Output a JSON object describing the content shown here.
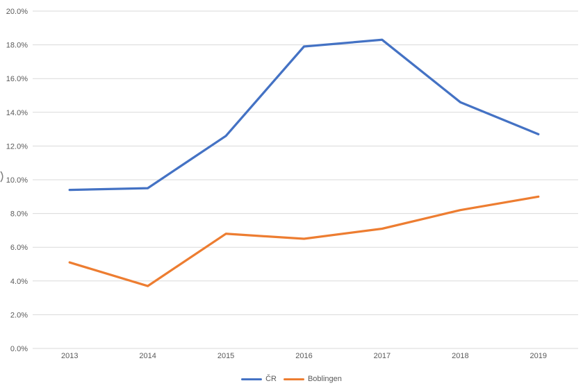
{
  "page": {
    "background": "#ffffff"
  },
  "chart_data": {
    "type": "line",
    "title": "",
    "xlabel": "",
    "ylabel": "",
    "categories": [
      "2013",
      "2014",
      "2015",
      "2016",
      "2017",
      "2018",
      "2019"
    ],
    "series": [
      {
        "name": "ČR",
        "color": "#4472c4",
        "values": [
          9.4,
          9.5,
          12.6,
          17.9,
          18.3,
          14.6,
          12.7
        ]
      },
      {
        "name": "Boblingen",
        "color": "#ed7d31",
        "values": [
          5.1,
          3.7,
          6.8,
          6.5,
          7.1,
          8.2,
          9.0
        ]
      }
    ],
    "ylim": [
      0,
      20
    ],
    "ytick_step": 2,
    "ytick_labels": [
      "0.0%",
      "2.0%",
      "4.0%",
      "6.0%",
      "8.0%",
      "10.0%",
      "12.0%",
      "14.0%",
      "16.0%",
      "18.0%",
      "20.0%"
    ],
    "grid": true,
    "grid_color": "#d9d9d9",
    "axis_label_color": "#595959",
    "line_width": 3.25,
    "legend_position": "bottom-center"
  }
}
